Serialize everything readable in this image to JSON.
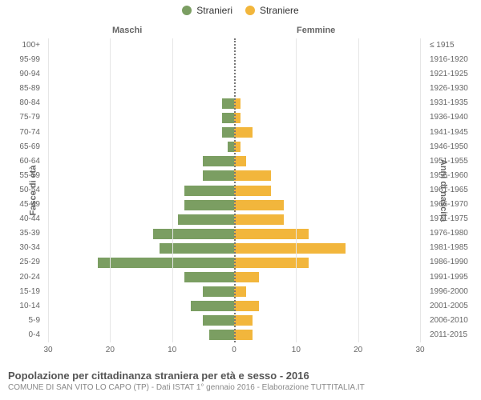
{
  "legend": [
    {
      "label": "Stranieri",
      "color": "#7b9e62"
    },
    {
      "label": "Straniere",
      "color": "#f2b63c"
    }
  ],
  "half_titles": {
    "left": "Maschi",
    "right": "Femmine"
  },
  "axis_title_left": "Fasce di età",
  "axis_title_right": "Anni di nascita",
  "x_ticks": [
    30,
    20,
    10,
    0,
    10,
    20,
    30
  ],
  "x_max": 30,
  "colors": {
    "male": "#7b9e62",
    "female": "#f2b63c",
    "grid": "#e6e6e6",
    "center": "#777777",
    "background": "#ffffff"
  },
  "rows": [
    {
      "age": "100+",
      "birth": "≤ 1915",
      "m": 0,
      "f": 0
    },
    {
      "age": "95-99",
      "birth": "1916-1920",
      "m": 0,
      "f": 0
    },
    {
      "age": "90-94",
      "birth": "1921-1925",
      "m": 0,
      "f": 0
    },
    {
      "age": "85-89",
      "birth": "1926-1930",
      "m": 0,
      "f": 0
    },
    {
      "age": "80-84",
      "birth": "1931-1935",
      "m": 2,
      "f": 1
    },
    {
      "age": "75-79",
      "birth": "1936-1940",
      "m": 2,
      "f": 1
    },
    {
      "age": "70-74",
      "birth": "1941-1945",
      "m": 2,
      "f": 3
    },
    {
      "age": "65-69",
      "birth": "1946-1950",
      "m": 1,
      "f": 1
    },
    {
      "age": "60-64",
      "birth": "1951-1955",
      "m": 5,
      "f": 2
    },
    {
      "age": "55-59",
      "birth": "1956-1960",
      "m": 5,
      "f": 6
    },
    {
      "age": "50-54",
      "birth": "1961-1965",
      "m": 8,
      "f": 6
    },
    {
      "age": "45-49",
      "birth": "1966-1970",
      "m": 8,
      "f": 8
    },
    {
      "age": "40-44",
      "birth": "1971-1975",
      "m": 9,
      "f": 8
    },
    {
      "age": "35-39",
      "birth": "1976-1980",
      "m": 13,
      "f": 12
    },
    {
      "age": "30-34",
      "birth": "1981-1985",
      "m": 12,
      "f": 18
    },
    {
      "age": "25-29",
      "birth": "1986-1990",
      "m": 22,
      "f": 12
    },
    {
      "age": "20-24",
      "birth": "1991-1995",
      "m": 8,
      "f": 4
    },
    {
      "age": "15-19",
      "birth": "1996-2000",
      "m": 5,
      "f": 2
    },
    {
      "age": "10-14",
      "birth": "2001-2005",
      "m": 7,
      "f": 4
    },
    {
      "age": "5-9",
      "birth": "2006-2010",
      "m": 5,
      "f": 3
    },
    {
      "age": "0-4",
      "birth": "2011-2015",
      "m": 4,
      "f": 3
    }
  ],
  "footer": {
    "title": "Popolazione per cittadinanza straniera per età e sesso - 2016",
    "subtitle": "COMUNE DI SAN VITO LO CAPO (TP) - Dati ISTAT 1° gennaio 2016 - Elaborazione TUTTITALIA.IT"
  }
}
